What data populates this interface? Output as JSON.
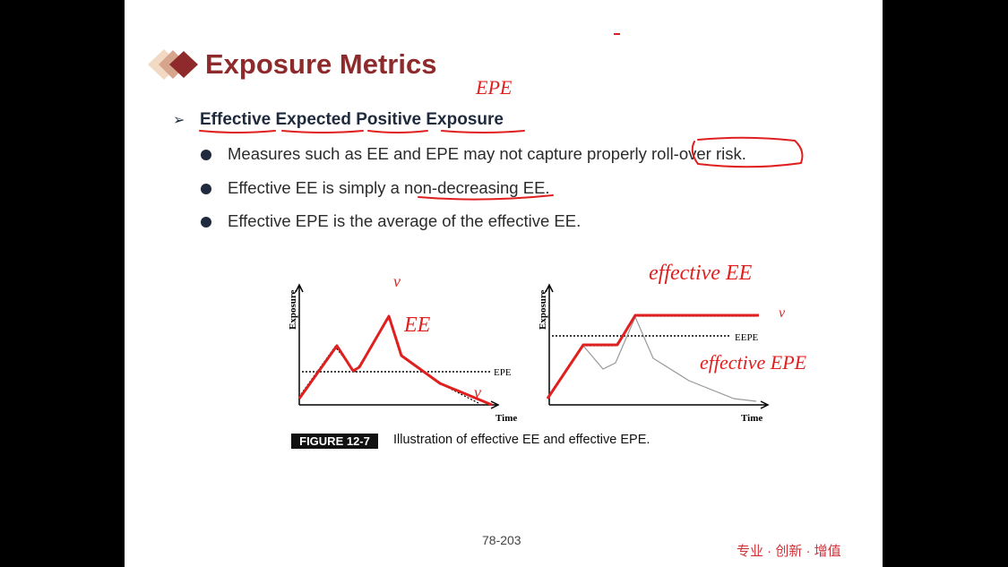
{
  "slide": {
    "title": "Exposure Metrics",
    "subheading": "Effective Expected Positive Exposure",
    "bullets": [
      "Measures such as EE and EPE may not capture properly roll-over risk.",
      "Effective EE is simply a non-decreasing EE.",
      "Effective EPE is the average of the effective EE."
    ],
    "figure": {
      "label": "FIGURE 12-7",
      "caption": "Illustration of effective EE and effective EPE.",
      "left_chart": {
        "y_axis": "Exposure",
        "x_axis": "Time",
        "line_label": "EPE"
      },
      "right_chart": {
        "y_axis": "Exposure",
        "x_axis": "Time",
        "line_label": "EEPE"
      }
    },
    "annotations": {
      "epe_top": "EPE",
      "ee": "EE",
      "effective_ee": "effective EE",
      "effective_epe": "effective EPE",
      "check_left_top": "v",
      "check_left_bottom": "v",
      "check_right": "v"
    },
    "page_number": "78-203",
    "footer_tag": "专业 · 创新 · 增值"
  },
  "colors": {
    "title": "#8e2a2b",
    "annotation_red": "#e0201f",
    "footer": "#d0333a"
  }
}
